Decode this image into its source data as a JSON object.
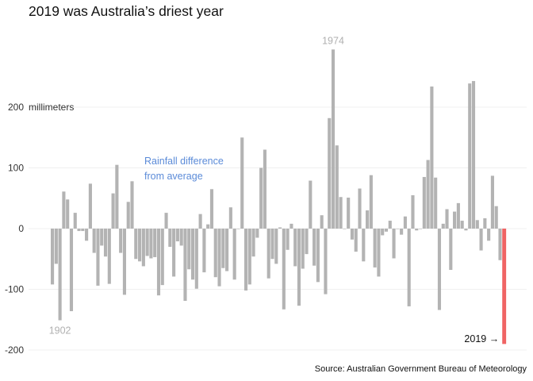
{
  "chart_data": {
    "type": "bar",
    "title": "2019 was Australia’s driest year",
    "ylabel": "millimeters",
    "source": "Source: Australian Government Bureau of Meteorology",
    "subtitle_annotation": [
      "Rainfall difference",
      "from average"
    ],
    "ylim": [
      -200,
      300
    ],
    "yticks": [
      -200,
      -100,
      0,
      100,
      200
    ],
    "grid": true,
    "legend": "none",
    "colors": {
      "default": "#b3b3b3",
      "highlight": "#f06464",
      "annotation": "#5b8bd8",
      "label_gray": "#b0b0b0"
    },
    "annotations": [
      {
        "text": "1902",
        "year": 1902
      },
      {
        "text": "1974",
        "year": 1974
      },
      {
        "text": "2019 →",
        "year": 2019
      }
    ],
    "highlight_year": 2019,
    "x_start": 1900,
    "x": [
      1900,
      1901,
      1902,
      1903,
      1904,
      1905,
      1906,
      1907,
      1908,
      1909,
      1910,
      1911,
      1912,
      1913,
      1914,
      1915,
      1916,
      1917,
      1918,
      1919,
      1920,
      1921,
      1922,
      1923,
      1924,
      1925,
      1926,
      1927,
      1928,
      1929,
      1930,
      1931,
      1932,
      1933,
      1934,
      1935,
      1936,
      1937,
      1938,
      1939,
      1940,
      1941,
      1942,
      1943,
      1944,
      1945,
      1946,
      1947,
      1948,
      1949,
      1950,
      1951,
      1952,
      1953,
      1954,
      1955,
      1956,
      1957,
      1958,
      1959,
      1960,
      1961,
      1962,
      1963,
      1964,
      1965,
      1966,
      1967,
      1968,
      1969,
      1970,
      1971,
      1972,
      1973,
      1974,
      1975,
      1976,
      1977,
      1978,
      1979,
      1980,
      1981,
      1982,
      1983,
      1984,
      1985,
      1986,
      1987,
      1988,
      1989,
      1990,
      1991,
      1992,
      1993,
      1994,
      1995,
      1996,
      1997,
      1998,
      1999,
      2000,
      2001,
      2002,
      2003,
      2004,
      2005,
      2006,
      2007,
      2008,
      2009,
      2010,
      2011,
      2012,
      2013,
      2014,
      2015,
      2016,
      2017,
      2018,
      2019
    ],
    "values": [
      -92,
      -58,
      -151,
      61,
      48,
      -136,
      26,
      -4,
      -4,
      -20,
      74,
      -40,
      -94,
      -28,
      -46,
      -91,
      58,
      105,
      -40,
      -109,
      44,
      78,
      -50,
      -54,
      -62,
      -45,
      -49,
      -47,
      -110,
      -93,
      26,
      -30,
      -79,
      -21,
      -28,
      -119,
      -67,
      -84,
      -99,
      24,
      -72,
      7,
      65,
      -80,
      -95,
      -65,
      -70,
      35,
      -84,
      0,
      150,
      -102,
      -92,
      -46,
      -15,
      100,
      130,
      -82,
      -50,
      -58,
      2,
      -133,
      -35,
      8,
      -62,
      -127,
      -66,
      -42,
      79,
      -61,
      -88,
      22,
      -108,
      182,
      295,
      137,
      52,
      0,
      51,
      -18,
      -38,
      66,
      -54,
      30,
      88,
      -64,
      -79,
      -11,
      -5,
      13,
      -49,
      0,
      -10,
      20,
      -128,
      55,
      -3,
      0,
      85,
      113,
      234,
      84,
      -134,
      8,
      32,
      -68,
      28,
      42,
      13,
      -3,
      239,
      243,
      14,
      -36,
      17,
      -20,
      87,
      37,
      -52,
      -190
    ]
  }
}
